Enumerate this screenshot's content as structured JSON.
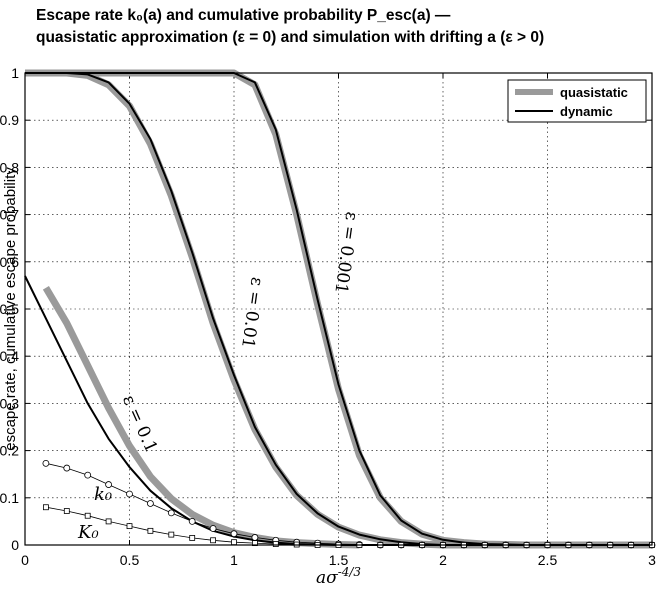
{
  "title_line1": "Escape rate k₀(a) and cumulative probability P_esc(a) —",
  "title_line2": "quasistatic approximation (ε = 0) and simulation with drifting a (ε > 0)",
  "chart_data": {
    "type": "line",
    "title": "Escape rate k₀(a) and cumulative probability P_esc(a) — quasistatic approximation (ε = 0) and simulation with drifting a (ε > 0)",
    "xlabel": "aσ^(-4/3)",
    "ylabel": "escape rate, cumulative escape probability",
    "xlim": [
      0,
      3
    ],
    "ylim": [
      0,
      1
    ],
    "x_ticks": [
      "0",
      "0.5",
      "1",
      "1.5",
      "2",
      "2.5",
      "3"
    ],
    "y_ticks": [
      "0",
      "0.1",
      "0.2",
      "0.3",
      "0.4",
      "0.5",
      "0.6",
      "0.7",
      "0.8",
      "0.9",
      "1"
    ],
    "grid": true,
    "legend": {
      "position": "top-right",
      "entries": [
        {
          "label": "quasistatic",
          "color": "#9a9a9a",
          "style": "thick"
        },
        {
          "label": "dynamic",
          "color": "#000000",
          "style": "thin"
        }
      ]
    },
    "curve_labels": [
      "ε = 0.001",
      "ε = 0.01",
      "ε = 0.1",
      "k₀",
      "K₀"
    ],
    "series": [
      {
        "label_text": "ε = 0.001",
        "kind": "quasistatic",
        "x": [
          0,
          0.5,
          1.0,
          1.1,
          1.2,
          1.3,
          1.4,
          1.5,
          1.6,
          1.7,
          1.8,
          1.9,
          2.0,
          2.1,
          2.2,
          2.3,
          2.4,
          3.0
        ],
        "y": [
          1,
          1,
          1,
          0.975,
          0.87,
          0.7,
          0.51,
          0.33,
          0.19,
          0.1,
          0.05,
          0.023,
          0.01,
          0.005,
          0.002,
          0.001,
          0,
          0
        ]
      },
      {
        "label_text": "ε = 0.001",
        "kind": "dynamic",
        "x": [
          0,
          0.5,
          1.0,
          1.1,
          1.2,
          1.3,
          1.4,
          1.5,
          1.6,
          1.7,
          1.8,
          1.9,
          2.0,
          2.1,
          2.2,
          2.3,
          2.4,
          3.0
        ],
        "y": [
          1,
          1,
          1,
          0.98,
          0.88,
          0.71,
          0.52,
          0.34,
          0.2,
          0.105,
          0.052,
          0.024,
          0.011,
          0.005,
          0.002,
          0.001,
          0,
          0
        ]
      },
      {
        "label_text": "ε = 0.01",
        "kind": "quasistatic",
        "x": [
          0,
          0.2,
          0.3,
          0.4,
          0.5,
          0.6,
          0.7,
          0.8,
          0.9,
          1.0,
          1.1,
          1.2,
          1.3,
          1.4,
          1.5,
          1.6,
          1.7,
          1.8,
          1.9,
          2.0,
          3.0
        ],
        "y": [
          1,
          1,
          0.995,
          0.975,
          0.93,
          0.85,
          0.74,
          0.61,
          0.47,
          0.35,
          0.245,
          0.165,
          0.105,
          0.065,
          0.038,
          0.021,
          0.011,
          0.005,
          0.002,
          0,
          0
        ]
      },
      {
        "label_text": "ε = 0.01",
        "kind": "dynamic",
        "x": [
          0,
          0.2,
          0.3,
          0.4,
          0.5,
          0.6,
          0.7,
          0.8,
          0.9,
          1.0,
          1.1,
          1.2,
          1.3,
          1.4,
          1.5,
          1.6,
          1.7,
          1.8,
          1.9,
          2.0,
          3.0
        ],
        "y": [
          1,
          1,
          0.997,
          0.98,
          0.935,
          0.86,
          0.75,
          0.62,
          0.48,
          0.36,
          0.25,
          0.17,
          0.108,
          0.067,
          0.039,
          0.022,
          0.012,
          0.006,
          0.002,
          0,
          0
        ]
      },
      {
        "label_text": "ε = 0.1",
        "kind": "quasistatic",
        "x": [
          0.1,
          0.2,
          0.3,
          0.4,
          0.5,
          0.6,
          0.7,
          0.8,
          0.9,
          1.0,
          1.1,
          1.2,
          1.3,
          1.4,
          1.5,
          1.6
        ],
        "y": [
          0.545,
          0.47,
          0.38,
          0.29,
          0.21,
          0.145,
          0.098,
          0.065,
          0.042,
          0.026,
          0.016,
          0.009,
          0.005,
          0.003,
          0.001,
          0
        ]
      },
      {
        "label_text": "ε = 0.1",
        "kind": "dynamic",
        "x": [
          0,
          0.1,
          0.2,
          0.3,
          0.4,
          0.5,
          0.6,
          0.7,
          0.8,
          0.9,
          1.0,
          1.1,
          1.2,
          1.3,
          1.4,
          1.5,
          3.0
        ],
        "y": [
          0.57,
          0.48,
          0.39,
          0.3,
          0.225,
          0.165,
          0.115,
          0.078,
          0.05,
          0.03,
          0.018,
          0.01,
          0.005,
          0.002,
          0.001,
          0,
          0
        ]
      },
      {
        "label_text": "k₀",
        "kind": "markers-circle",
        "x": [
          0.1,
          0.2,
          0.3,
          0.4,
          0.5,
          0.6,
          0.7,
          0.8,
          0.9,
          1.0,
          1.1,
          1.2,
          1.3,
          1.4,
          1.5,
          1.6,
          1.7,
          1.8,
          1.9,
          2.0,
          2.1,
          2.2,
          2.3,
          2.4,
          2.5,
          2.6,
          2.7,
          2.8,
          2.9,
          3.0
        ],
        "y": [
          0.173,
          0.163,
          0.148,
          0.128,
          0.108,
          0.088,
          0.068,
          0.05,
          0.035,
          0.024,
          0.016,
          0.01,
          0.006,
          0.004,
          0.002,
          0.001,
          0,
          0,
          0,
          0,
          0,
          0,
          0,
          0,
          0,
          0,
          0,
          0,
          0,
          0
        ]
      },
      {
        "label_text": "K₀",
        "kind": "markers-square",
        "x": [
          0.1,
          0.2,
          0.3,
          0.4,
          0.5,
          0.6,
          0.7,
          0.8,
          0.9,
          1.0,
          1.1,
          1.2,
          1.3,
          1.4,
          1.5,
          1.6,
          1.7,
          1.8,
          1.9,
          2.0,
          2.1,
          2.2,
          2.3,
          2.4,
          2.5,
          2.6,
          2.7,
          2.8,
          2.9,
          3.0
        ],
        "y": [
          0.08,
          0.072,
          0.062,
          0.05,
          0.04,
          0.03,
          0.022,
          0.015,
          0.01,
          0.006,
          0.004,
          0.002,
          0.001,
          0,
          0,
          0,
          0,
          0,
          0,
          0,
          0,
          0,
          0,
          0,
          0,
          0,
          0,
          0,
          0,
          0
        ]
      }
    ]
  }
}
